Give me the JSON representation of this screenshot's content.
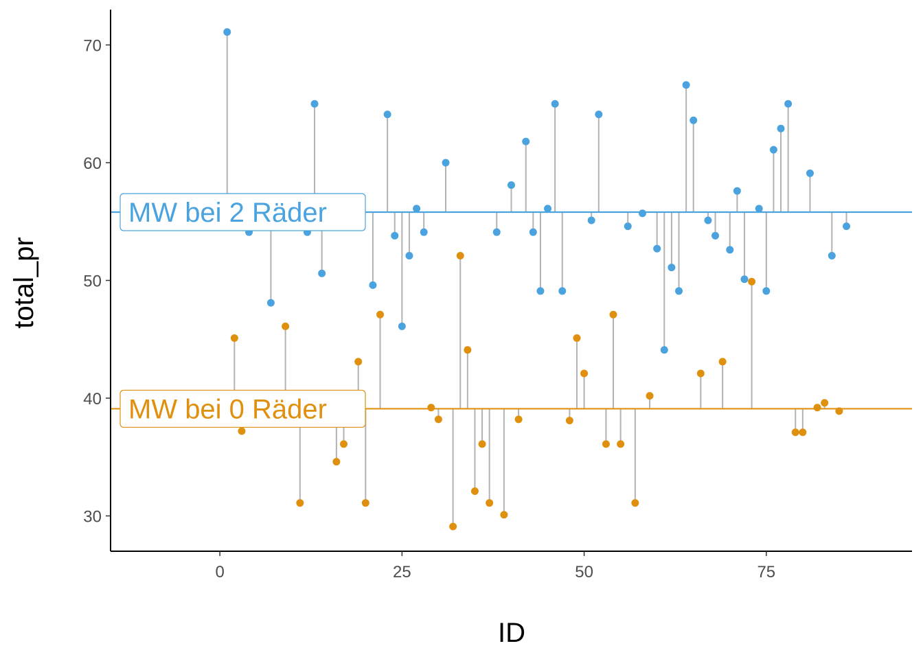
{
  "chart_data": {
    "type": "scatter",
    "xlabel": "ID",
    "ylabel": "total_pr",
    "xlim": [
      -15,
      95
    ],
    "ylim": [
      27,
      73
    ],
    "xticks": [
      0,
      25,
      50,
      75
    ],
    "yticks": [
      30,
      40,
      50,
      60,
      70
    ],
    "grid": false,
    "series": [
      {
        "group": "2",
        "color": "#4aa3df",
        "mean": 55.8,
        "mean_label": "MW bei 2 Räder",
        "points": [
          [
            1,
            71.1
          ],
          [
            4,
            54.1
          ],
          [
            7,
            48.1
          ],
          [
            12,
            54.1
          ],
          [
            13,
            65.0
          ],
          [
            14,
            50.6
          ],
          [
            21,
            49.6
          ],
          [
            23,
            64.1
          ],
          [
            24,
            53.8
          ],
          [
            25,
            46.1
          ],
          [
            26,
            52.1
          ],
          [
            27,
            56.1
          ],
          [
            28,
            54.1
          ],
          [
            31,
            60.0
          ],
          [
            38,
            54.1
          ],
          [
            40,
            58.1
          ],
          [
            42,
            61.8
          ],
          [
            43,
            54.1
          ],
          [
            44,
            49.1
          ],
          [
            45,
            56.1
          ],
          [
            46,
            65.0
          ],
          [
            47,
            49.1
          ],
          [
            51,
            55.1
          ],
          [
            52,
            64.1
          ],
          [
            56,
            54.6
          ],
          [
            58,
            55.7
          ],
          [
            60,
            52.7
          ],
          [
            61,
            44.1
          ],
          [
            62,
            51.1
          ],
          [
            63,
            49.1
          ],
          [
            64,
            66.6
          ],
          [
            65,
            63.6
          ],
          [
            67,
            55.1
          ],
          [
            68,
            53.8
          ],
          [
            70,
            52.6
          ],
          [
            71,
            57.6
          ],
          [
            72,
            50.1
          ],
          [
            74,
            56.1
          ],
          [
            75,
            49.1
          ],
          [
            76,
            61.1
          ],
          [
            77,
            62.9
          ],
          [
            78,
            65.0
          ],
          [
            81,
            59.1
          ],
          [
            84,
            52.1
          ],
          [
            86,
            54.6
          ]
        ]
      },
      {
        "group": "0",
        "color": "#e0900f",
        "mean": 39.1,
        "mean_label": "MW bei 0 Räder",
        "points": [
          [
            2,
            45.1
          ],
          [
            3,
            37.2
          ],
          [
            9,
            46.1
          ],
          [
            11,
            31.1
          ],
          [
            16,
            34.6
          ],
          [
            17,
            36.1
          ],
          [
            19,
            43.1
          ],
          [
            20,
            31.1
          ],
          [
            22,
            47.1
          ],
          [
            29,
            39.2
          ],
          [
            30,
            38.2
          ],
          [
            32,
            29.1
          ],
          [
            33,
            52.1
          ],
          [
            34,
            44.1
          ],
          [
            35,
            32.1
          ],
          [
            36,
            36.1
          ],
          [
            37,
            31.1
          ],
          [
            39,
            30.1
          ],
          [
            41,
            38.2
          ],
          [
            48,
            38.1
          ],
          [
            49,
            45.1
          ],
          [
            50,
            42.1
          ],
          [
            53,
            36.1
          ],
          [
            54,
            47.1
          ],
          [
            55,
            36.1
          ],
          [
            57,
            31.1
          ],
          [
            59,
            40.2
          ],
          [
            66,
            42.1
          ],
          [
            69,
            43.1
          ],
          [
            73,
            49.9
          ],
          [
            79,
            37.1
          ],
          [
            80,
            37.1
          ],
          [
            82,
            39.2
          ],
          [
            83,
            39.6
          ],
          [
            85,
            38.9
          ]
        ]
      }
    ]
  }
}
